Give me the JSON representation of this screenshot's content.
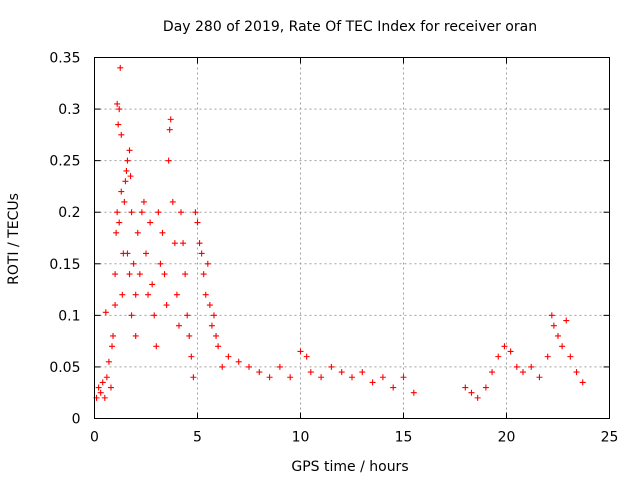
{
  "chart_data": {
    "type": "scatter",
    "title": "Day 280 of 2019, Rate Of TEC Index for receiver oran",
    "xlabel": "GPS time / hours",
    "ylabel": "ROTI / TECUs",
    "xlim": [
      0,
      25
    ],
    "ylim": [
      0,
      0.35
    ],
    "xticks": [
      0,
      5,
      10,
      15,
      20,
      25
    ],
    "xtick_labels": [
      "0",
      "5",
      "10",
      "15",
      "20",
      "25"
    ],
    "yticks": [
      0,
      0.05,
      0.1,
      0.15,
      0.2,
      0.25,
      0.3,
      0.35
    ],
    "ytick_labels": [
      "0",
      "0.05",
      "0.1",
      "0.15",
      "0.2",
      "0.25",
      "0.3",
      "0.35"
    ],
    "grid": true,
    "marker": "+",
    "color": "#ff0000",
    "series": [
      {
        "name": "ROTI",
        "points": [
          [
            0.1,
            0.02
          ],
          [
            0.2,
            0.03
          ],
          [
            0.3,
            0.025
          ],
          [
            0.4,
            0.035
          ],
          [
            0.5,
            0.02
          ],
          [
            0.55,
            0.103
          ],
          [
            0.6,
            0.04
          ],
          [
            0.7,
            0.055
          ],
          [
            0.8,
            0.03
          ],
          [
            0.85,
            0.07
          ],
          [
            0.9,
            0.08
          ],
          [
            1.0,
            0.11
          ],
          [
            1.0,
            0.14
          ],
          [
            1.05,
            0.18
          ],
          [
            1.1,
            0.2
          ],
          [
            1.1,
            0.305
          ],
          [
            1.15,
            0.285
          ],
          [
            1.2,
            0.19
          ],
          [
            1.2,
            0.3
          ],
          [
            1.25,
            0.34
          ],
          [
            1.3,
            0.22
          ],
          [
            1.3,
            0.275
          ],
          [
            1.35,
            0.12
          ],
          [
            1.4,
            0.16
          ],
          [
            1.45,
            0.21
          ],
          [
            1.5,
            0.23
          ],
          [
            1.55,
            0.24
          ],
          [
            1.6,
            0.25
          ],
          [
            1.6,
            0.16
          ],
          [
            1.7,
            0.26
          ],
          [
            1.7,
            0.14
          ],
          [
            1.75,
            0.235
          ],
          [
            1.8,
            0.2
          ],
          [
            1.8,
            0.1
          ],
          [
            1.9,
            0.15
          ],
          [
            2.0,
            0.12
          ],
          [
            2.0,
            0.08
          ],
          [
            2.1,
            0.18
          ],
          [
            2.2,
            0.14
          ],
          [
            2.3,
            0.2
          ],
          [
            2.4,
            0.21
          ],
          [
            2.5,
            0.16
          ],
          [
            2.6,
            0.12
          ],
          [
            2.7,
            0.19
          ],
          [
            2.8,
            0.13
          ],
          [
            2.9,
            0.1
          ],
          [
            3.0,
            0.07
          ],
          [
            3.1,
            0.2
          ],
          [
            3.2,
            0.15
          ],
          [
            3.3,
            0.18
          ],
          [
            3.4,
            0.14
          ],
          [
            3.5,
            0.11
          ],
          [
            3.6,
            0.25
          ],
          [
            3.65,
            0.28
          ],
          [
            3.7,
            0.29
          ],
          [
            3.8,
            0.21
          ],
          [
            3.9,
            0.17
          ],
          [
            4.0,
            0.12
          ],
          [
            4.1,
            0.09
          ],
          [
            4.2,
            0.2
          ],
          [
            4.3,
            0.17
          ],
          [
            4.4,
            0.14
          ],
          [
            4.5,
            0.1
          ],
          [
            4.6,
            0.08
          ],
          [
            4.7,
            0.06
          ],
          [
            4.8,
            0.04
          ],
          [
            4.9,
            0.2
          ],
          [
            5.0,
            0.19
          ],
          [
            5.1,
            0.17
          ],
          [
            5.2,
            0.16
          ],
          [
            5.3,
            0.14
          ],
          [
            5.4,
            0.12
          ],
          [
            5.5,
            0.15
          ],
          [
            5.6,
            0.11
          ],
          [
            5.7,
            0.09
          ],
          [
            5.8,
            0.1
          ],
          [
            5.9,
            0.08
          ],
          [
            6.0,
            0.07
          ],
          [
            6.2,
            0.05
          ],
          [
            6.5,
            0.06
          ],
          [
            7.0,
            0.055
          ],
          [
            7.5,
            0.05
          ],
          [
            8.0,
            0.045
          ],
          [
            8.5,
            0.04
          ],
          [
            9.0,
            0.05
          ],
          [
            9.5,
            0.04
          ],
          [
            10.0,
            0.065
          ],
          [
            10.3,
            0.06
          ],
          [
            10.5,
            0.045
          ],
          [
            11.0,
            0.04
          ],
          [
            11.5,
            0.05
          ],
          [
            12.0,
            0.045
          ],
          [
            12.5,
            0.04
          ],
          [
            13.0,
            0.045
          ],
          [
            13.5,
            0.035
          ],
          [
            14.0,
            0.04
          ],
          [
            14.5,
            0.03
          ],
          [
            15.0,
            0.04
          ],
          [
            15.5,
            0.025
          ],
          [
            18.0,
            0.03
          ],
          [
            18.3,
            0.025
          ],
          [
            18.6,
            0.02
          ],
          [
            19.0,
            0.03
          ],
          [
            19.3,
            0.045
          ],
          [
            19.6,
            0.06
          ],
          [
            19.9,
            0.07
          ],
          [
            20.2,
            0.065
          ],
          [
            20.5,
            0.05
          ],
          [
            20.8,
            0.045
          ],
          [
            21.2,
            0.05
          ],
          [
            21.6,
            0.04
          ],
          [
            22.0,
            0.06
          ],
          [
            22.2,
            0.1
          ],
          [
            22.3,
            0.09
          ],
          [
            22.5,
            0.08
          ],
          [
            22.7,
            0.07
          ],
          [
            22.9,
            0.095
          ],
          [
            23.1,
            0.06
          ],
          [
            23.4,
            0.045
          ],
          [
            23.7,
            0.035
          ]
        ]
      }
    ]
  }
}
